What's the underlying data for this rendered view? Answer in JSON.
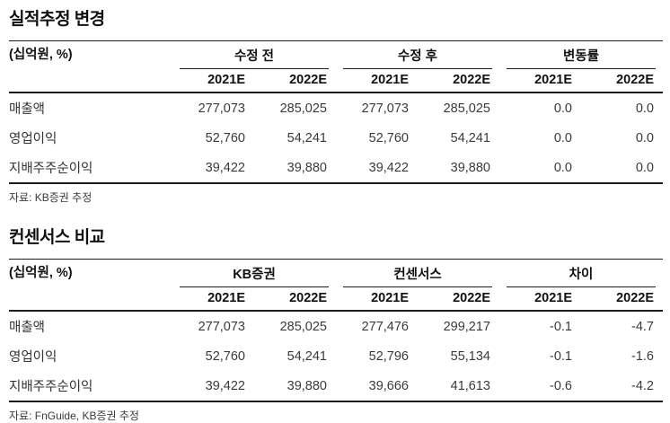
{
  "colors": {
    "rule": "#1b1b1b",
    "heading_text": "#111111",
    "body_text": "#3a3a3a",
    "background": "#ffffff"
  },
  "tables": [
    {
      "title": "실적추정 변경",
      "unit_label": "(십억원, %)",
      "groups": [
        {
          "label": "수정 전"
        },
        {
          "label": "수정 후"
        },
        {
          "label": "변동률"
        }
      ],
      "col_headers": [
        "2021E",
        "2022E",
        "2021E",
        "2022E",
        "2021E",
        "2022E"
      ],
      "rows": [
        {
          "label": "매출액",
          "values": [
            "277,073",
            "285,025",
            "277,073",
            "285,025",
            "0.0",
            "0.0"
          ]
        },
        {
          "label": "영업이익",
          "values": [
            "52,760",
            "54,241",
            "52,760",
            "54,241",
            "0.0",
            "0.0"
          ]
        },
        {
          "label": "지배주주순이익",
          "values": [
            "39,422",
            "39,880",
            "39,422",
            "39,880",
            "0.0",
            "0.0"
          ]
        }
      ],
      "source": "자료: KB증권 추정"
    },
    {
      "title": "컨센서스 비교",
      "unit_label": "(십억원, %)",
      "groups": [
        {
          "label": "KB증권"
        },
        {
          "label": "컨센서스"
        },
        {
          "label": "차이"
        }
      ],
      "col_headers": [
        "2021E",
        "2022E",
        "2021E",
        "2022E",
        "2021E",
        "2022E"
      ],
      "rows": [
        {
          "label": "매출액",
          "values": [
            "277,073",
            "285,025",
            "277,476",
            "299,217",
            "-0.1",
            "-4.7"
          ]
        },
        {
          "label": "영업이익",
          "values": [
            "52,760",
            "54,241",
            "52,796",
            "55,134",
            "-0.1",
            "-1.6"
          ]
        },
        {
          "label": "지배주주순이익",
          "values": [
            "39,422",
            "39,880",
            "39,666",
            "41,613",
            "-0.6",
            "-4.2"
          ]
        }
      ],
      "source": "자료: FnGuide, KB증권 추정"
    }
  ]
}
